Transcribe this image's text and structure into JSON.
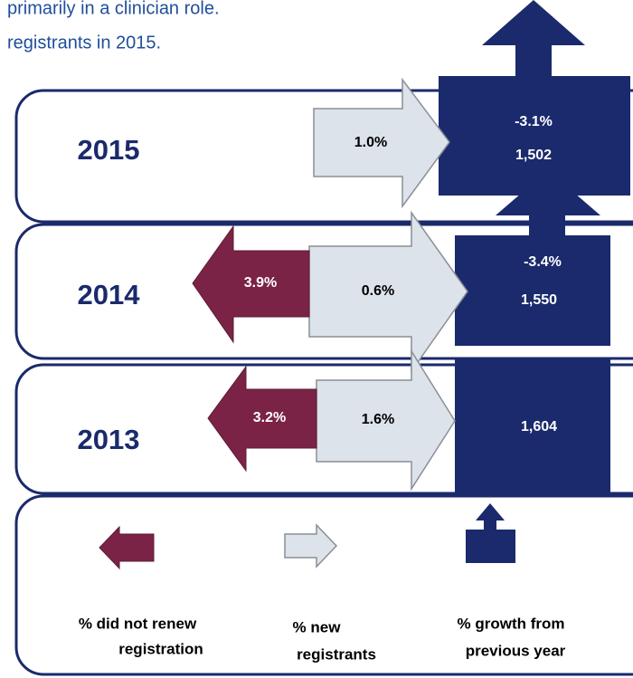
{
  "header": {
    "lines": [
      "primarily in a clinician role.",
      "registrants in 2015."
    ]
  },
  "rows": [
    {
      "year": "2015",
      "new": "1.0%",
      "growth": "-3.1%",
      "total": "1,502"
    },
    {
      "year": "2014",
      "not_renewed": "3.9%",
      "new": "0.6%",
      "growth": "-3.4%",
      "total": "1,550"
    },
    {
      "year": "2013",
      "not_renewed": "3.2%",
      "new": "1.6%",
      "total": "1,604"
    }
  ],
  "legend": [
    {
      "lines": [
        "% did not renew",
        "registration"
      ]
    },
    {
      "lines": [
        "% new",
        "registrants"
      ]
    },
    {
      "lines": [
        "% growth from",
        "previous year"
      ]
    }
  ]
}
